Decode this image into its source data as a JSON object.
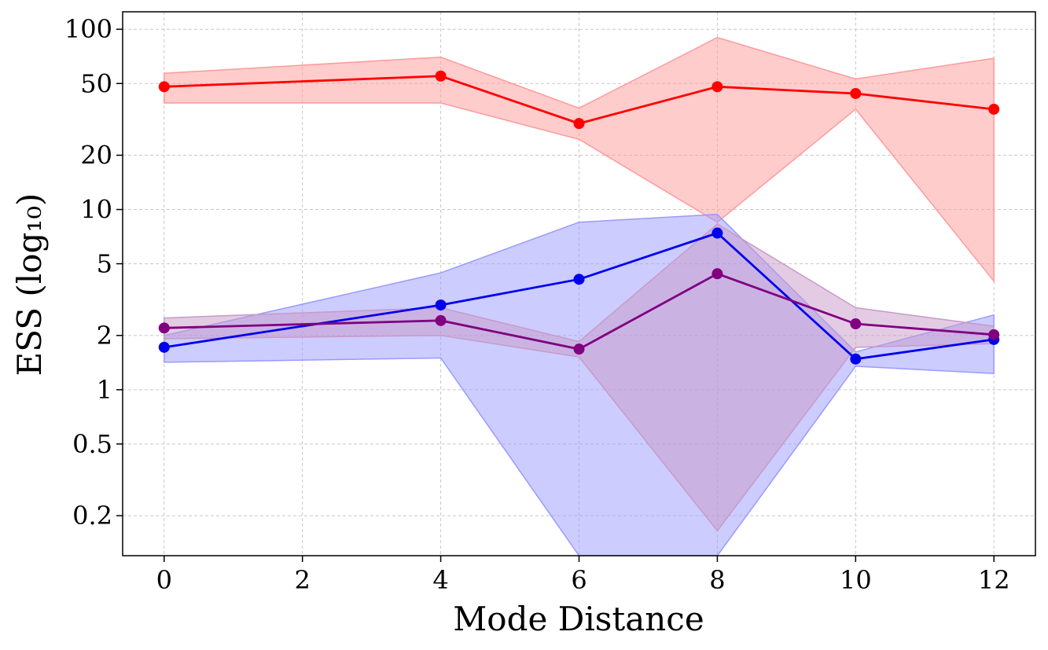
{
  "chart_data": {
    "type": "line",
    "title": "",
    "xlabel": "Mode Distance",
    "ylabel": "ESS (log₁₀)",
    "y_scale": "log",
    "xlim": [
      -0.6,
      12.6
    ],
    "ylim": [
      0.12,
      125
    ],
    "x_ticks": [
      0,
      2,
      4,
      6,
      8,
      10,
      12
    ],
    "x_tick_labels": [
      "0",
      "2",
      "4",
      "6",
      "8",
      "10",
      "12"
    ],
    "y_ticks": [
      0.2,
      0.5,
      1,
      2,
      5,
      10,
      20,
      50,
      100
    ],
    "y_tick_labels": [
      "0.2",
      "0.5",
      "1",
      "2",
      "5",
      "10",
      "20",
      "50",
      "100"
    ],
    "grid": true,
    "x": [
      0,
      4,
      6,
      8,
      10,
      12
    ],
    "series": [
      {
        "color": "#ff0000",
        "band_color": "#ff9a9a",
        "values": [
          48,
          55,
          30,
          48,
          44,
          36
        ],
        "lower": [
          39,
          39,
          24.5,
          8.5,
          36,
          4.0
        ],
        "upper": [
          57,
          70,
          36.5,
          90,
          53,
          69
        ]
      },
      {
        "color": "#0000ee",
        "band_color": "#9a9aff",
        "values": [
          1.72,
          2.95,
          4.1,
          7.4,
          1.48,
          1.9
        ],
        "lower": [
          1.42,
          1.5,
          0.01,
          0.01,
          1.35,
          1.23
        ],
        "upper": [
          2.0,
          4.45,
          8.5,
          9.4,
          1.62,
          2.6
        ],
        "lower_left": [
          1.42,
          1.5
        ],
        "note_free": true
      },
      {
        "color": "#800080",
        "band_color": "#c89ac8",
        "values": [
          2.2,
          2.42,
          1.68,
          4.4,
          2.32,
          2.02
        ],
        "lower": [
          1.92,
          2.0,
          1.52,
          0.165,
          1.72,
          1.8
        ],
        "upper": [
          2.5,
          2.85,
          1.85,
          8.3,
          2.85,
          2.25
        ]
      }
    ]
  }
}
